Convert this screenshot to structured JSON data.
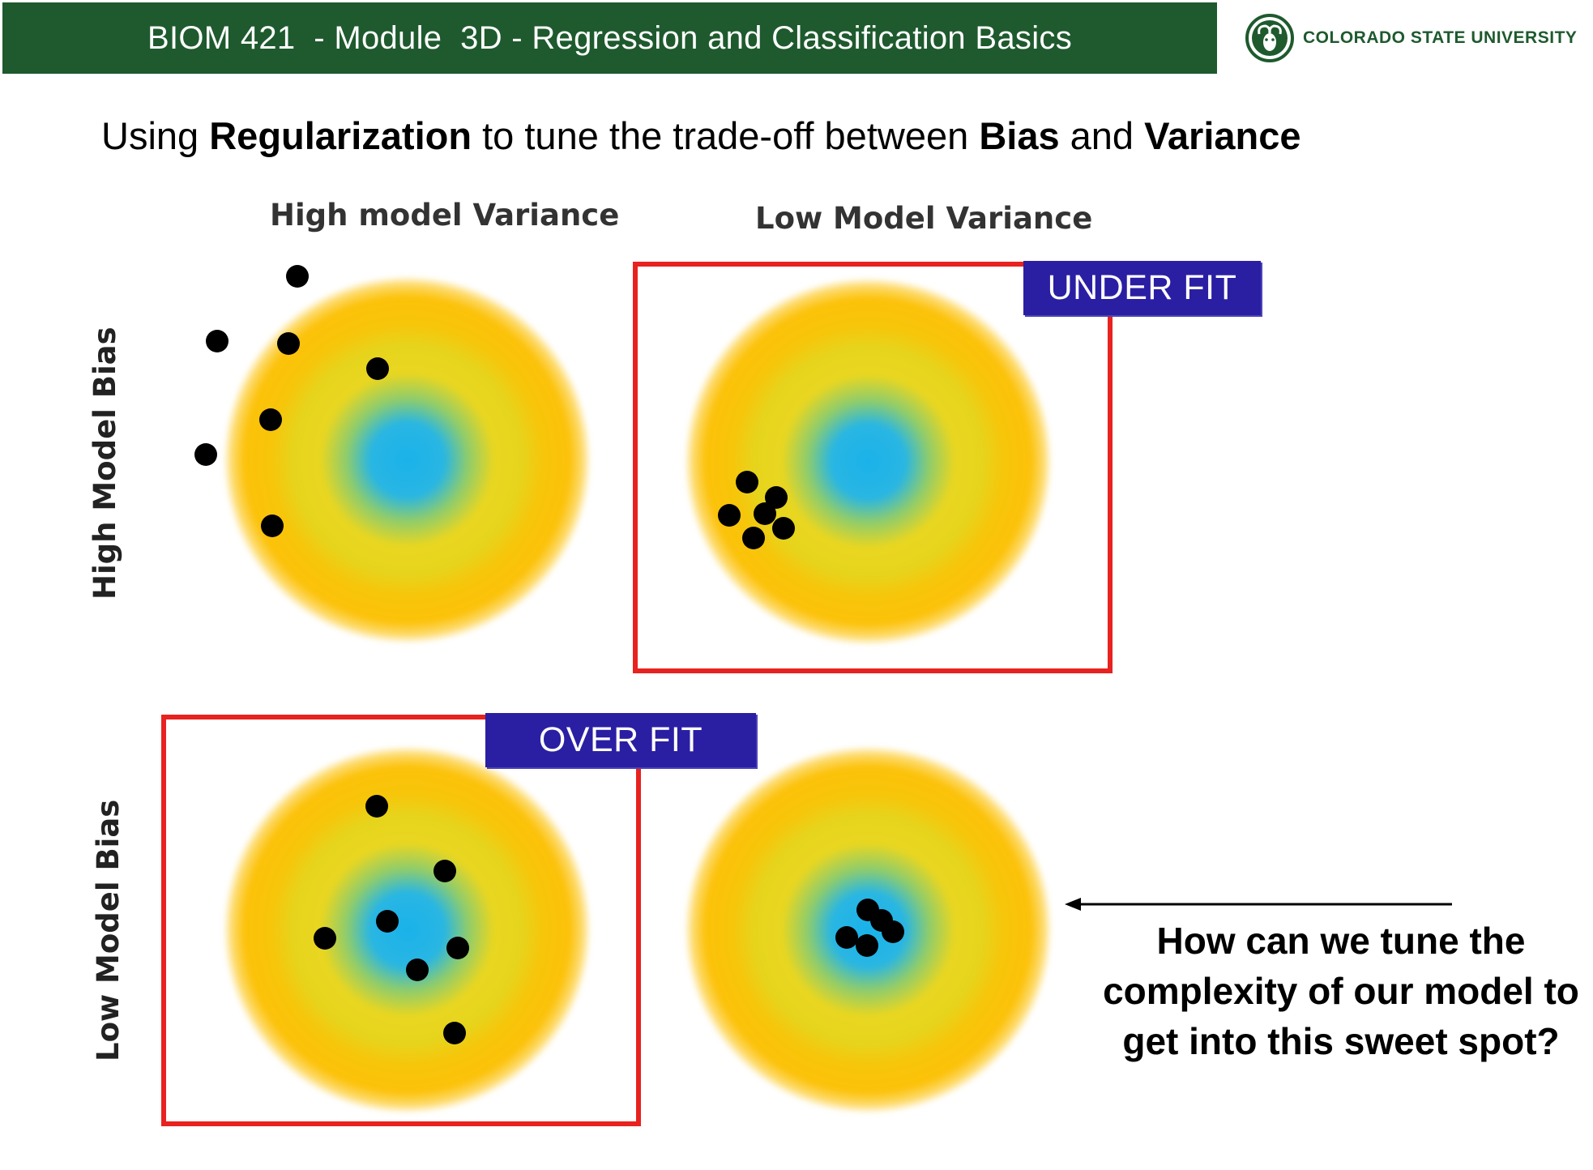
{
  "header": {
    "title": "BIOM 421  - Module  3D - Regression and Classification Basics",
    "brand_color": "#1e5a2e"
  },
  "logo": {
    "text": "COLORADO STATE UNIVERSITY",
    "icon": "ram-icon"
  },
  "headline": {
    "part1": "Using ",
    "bold1": "Regularization",
    "part2": " to tune the trade-off between ",
    "bold2": "Bias",
    "part3": " and ",
    "bold3": "Variance"
  },
  "columns": {
    "high_variance": "High model Variance",
    "low_variance": "Low Model Variance"
  },
  "rows": {
    "high_bias": "High Model Bias",
    "low_bias": "Low Model Bias"
  },
  "badges": {
    "under_fit": "UNDER FIT",
    "over_fit": "OVER FIT"
  },
  "question": "How can we tune the complexity of our model to get into this sweet spot?",
  "colors": {
    "frame": "#e8221f",
    "badge": "#2a1fa3",
    "bullseye_center": "#1ab2ea",
    "bullseye_mid": "#e6d41c",
    "bullseye_outer": "#fcc20a"
  }
}
